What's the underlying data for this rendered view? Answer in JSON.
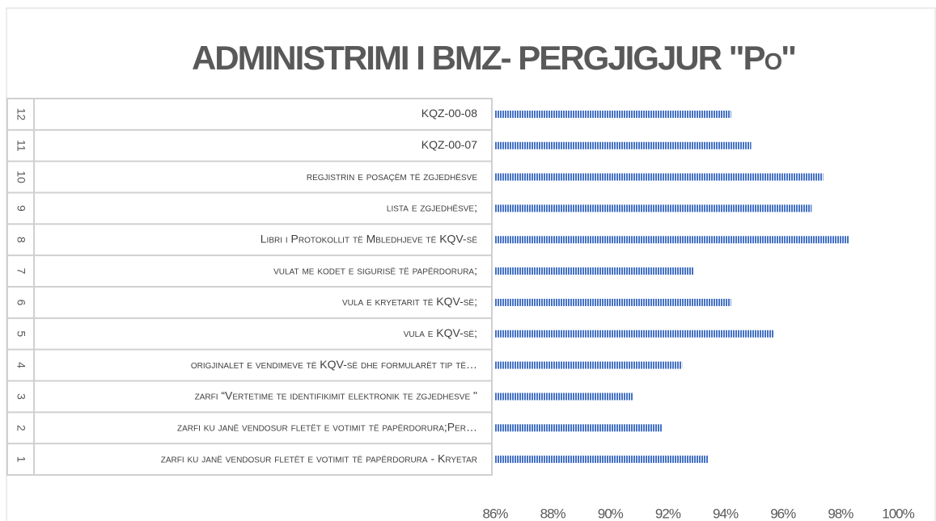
{
  "chart_data": {
    "type": "bar",
    "orientation": "horizontal",
    "title": "ADMINISTRIMI I BMZ-  PERGJIGJUR \"Po\"",
    "category_numbers": [
      1,
      2,
      3,
      4,
      5,
      6,
      7,
      8,
      9,
      10,
      11,
      12
    ],
    "categories": [
      "zarfi ku janë vendosur fletët e votimit të papërdorura - Kryetar",
      "zarfi ku janë vendosur fletët e votimit të papërdorura;Per…",
      "zarfi “Vertetime te identifikimit elektronik te zgjedhesve \"",
      "origjinalet e vendimeve të KQV-së dhe formularët tip të…",
      "vula e KQV-së;",
      "vula e kryetarit të KQV-së;",
      "vulat me kodet e sigurisë të papërdorura;",
      "Libri i Protokollit të Mbledhjeve të KQV-së",
      "lista e zgjedhësve;",
      "regjistrin e posaçëm të zgjedhësve",
      "KQZ-00-07",
      "KQZ-00-08"
    ],
    "values": [
      93.4,
      91.8,
      90.8,
      92.5,
      95.7,
      94.2,
      92.9,
      98.3,
      97.0,
      97.4,
      94.9,
      94.2
    ],
    "color": "#4472c4",
    "xlim": [
      86,
      100
    ],
    "xticks": [
      {
        "value": 86,
        "label": "86%"
      },
      {
        "value": 88,
        "label": "88%"
      },
      {
        "value": 90,
        "label": "90%"
      },
      {
        "value": 92,
        "label": "92%"
      },
      {
        "value": 94,
        "label": "94%"
      },
      {
        "value": 96,
        "label": "96%"
      },
      {
        "value": 98,
        "label": "98%"
      },
      {
        "value": 100,
        "label": "100%"
      }
    ],
    "grid": false
  }
}
